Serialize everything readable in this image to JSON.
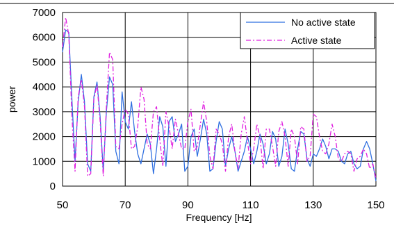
{
  "chart_data": {
    "type": "line",
    "title": "",
    "xlabel": "Frequency [Hz]",
    "ylabel": "power",
    "xlim": [
      50,
      150
    ],
    "ylim": [
      0,
      7000
    ],
    "x_ticks": [
      "50",
      "70",
      "90",
      "110",
      "130",
      "150"
    ],
    "y_ticks": [
      "0",
      "1000",
      "2000",
      "3000",
      "4000",
      "5000",
      "6000",
      "7000"
    ],
    "grid": true,
    "legend_position": "top-right",
    "series": [
      {
        "name": "No active state",
        "color": "#2f6fe0",
        "style": "solid",
        "x": [
          50,
          51,
          52,
          53,
          54,
          55,
          56,
          57,
          58,
          59,
          60,
          61,
          62,
          63,
          64,
          65,
          66,
          67,
          68,
          69,
          70,
          71,
          72,
          73,
          74,
          75,
          76,
          77,
          78,
          79,
          80,
          81,
          82,
          83,
          84,
          85,
          86,
          87,
          88,
          89,
          90,
          91,
          92,
          93,
          94,
          95,
          96,
          97,
          98,
          99,
          100,
          101,
          102,
          103,
          104,
          105,
          106,
          107,
          108,
          109,
          110,
          111,
          112,
          113,
          114,
          115,
          116,
          117,
          118,
          119,
          120,
          121,
          122,
          123,
          124,
          125,
          126,
          127,
          128,
          129,
          130,
          131,
          132,
          133,
          134,
          135,
          136,
          137,
          138,
          139,
          140,
          141,
          142,
          143,
          144,
          145,
          146,
          147,
          148,
          149,
          150
        ],
        "y": [
          5400,
          6300,
          6200,
          3500,
          1000,
          3400,
          4500,
          3400,
          900,
          600,
          3600,
          4200,
          2800,
          600,
          3000,
          4400,
          4100,
          1400,
          900,
          3800,
          2600,
          2300,
          3400,
          2200,
          1300,
          900,
          1500,
          2100,
          1700,
          500,
          1500,
          2800,
          2400,
          800,
          2600,
          2800,
          1800,
          2100,
          2500,
          600,
          800,
          2000,
          2300,
          1200,
          1900,
          2700,
          2100,
          600,
          700,
          1800,
          2600,
          2300,
          800,
          1500,
          2000,
          1400,
          600,
          1000,
          1400,
          2000,
          1500,
          900,
          1400,
          2100,
          1700,
          900,
          1300,
          2200,
          1900,
          800,
          1200,
          2300,
          1700,
          700,
          600,
          1500,
          2200,
          2100,
          1100,
          800,
          1300,
          1200,
          1500,
          1900,
          1600,
          1100,
          1500,
          1500,
          1400,
          1000,
          900,
          1300,
          1400,
          900,
          700,
          800,
          1500,
          1800,
          1500,
          900,
          200
        ]
      },
      {
        "name": "Active state",
        "color": "#e020e0",
        "style": "dashdot",
        "x": [
          50,
          51,
          52,
          53,
          54,
          55,
          56,
          57,
          58,
          59,
          60,
          61,
          62,
          63,
          64,
          65,
          66,
          67,
          68,
          69,
          70,
          71,
          72,
          73,
          74,
          75,
          76,
          77,
          78,
          79,
          80,
          81,
          82,
          83,
          84,
          85,
          86,
          87,
          88,
          89,
          90,
          91,
          92,
          93,
          94,
          95,
          96,
          97,
          98,
          99,
          100,
          101,
          102,
          103,
          104,
          105,
          106,
          107,
          108,
          109,
          110,
          111,
          112,
          113,
          114,
          115,
          116,
          117,
          118,
          119,
          120,
          121,
          122,
          123,
          124,
          125,
          126,
          127,
          128,
          129,
          130,
          131,
          132,
          133,
          134,
          135,
          136,
          137,
          138,
          139,
          140,
          141,
          142,
          143,
          144,
          145,
          146,
          147,
          148,
          149,
          150
        ],
        "y": [
          5600,
          6800,
          6100,
          2800,
          600,
          3600,
          4300,
          3200,
          400,
          500,
          3500,
          4100,
          2600,
          400,
          3200,
          5400,
          5100,
          1600,
          1500,
          2500,
          3100,
          2900,
          1500,
          1600,
          2400,
          4000,
          3500,
          1700,
          1500,
          3000,
          3200,
          1900,
          800,
          3000,
          2400,
          1500,
          2700,
          2100,
          1500,
          1500,
          2600,
          3100,
          1400,
          1600,
          2500,
          3400,
          2600,
          1200,
          700,
          2300,
          2100,
          1700,
          600,
          2000,
          2500,
          1400,
          700,
          2100,
          2800,
          1800,
          900,
          1500,
          2500,
          2000,
          700,
          2300,
          2300,
          1600,
          800,
          2200,
          2600,
          2000,
          800,
          2300,
          2000,
          900,
          2400,
          2300,
          1000,
          1200,
          2900,
          2800,
          2000,
          1400,
          1300,
          1700,
          2500,
          2000,
          1100,
          1000,
          1300,
          1400,
          1300,
          600,
          1100,
          1200,
          1500,
          1300,
          700,
          900,
          300
        ]
      }
    ]
  }
}
